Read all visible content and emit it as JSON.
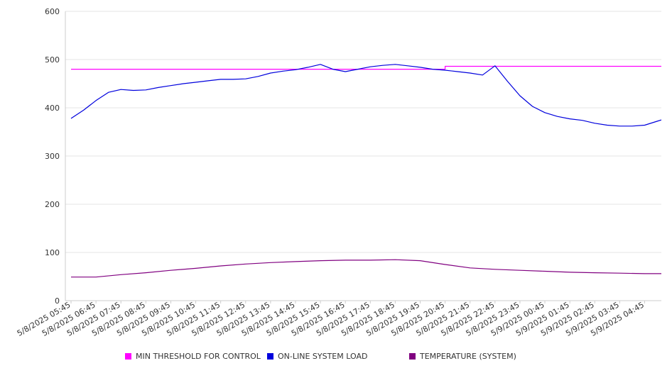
{
  "chart_data": {
    "type": "line",
    "title": "",
    "xlabel": "",
    "ylabel": "",
    "ylim": [
      0,
      600
    ],
    "yticks": [
      0,
      100,
      200,
      300,
      400,
      500,
      600
    ],
    "grid": "horizontal",
    "legend_position": "bottom",
    "x_tick_labels": [
      "5/8/2025 05:45",
      "5/8/2025 06:45",
      "5/8/2025 07:45",
      "5/8/2025 08:45",
      "5/8/2025 09:45",
      "5/8/2025 10:45",
      "5/8/2025 11:45",
      "5/8/2025 12:45",
      "5/8/2025 13:45",
      "5/8/2025 14:45",
      "5/8/2025 15:45",
      "5/8/2025 16:45",
      "5/8/2025 17:45",
      "5/8/2025 18:45",
      "5/8/2025 19:45",
      "5/8/2025 20:45",
      "5/8/2025 21:45",
      "5/8/2025 22:45",
      "5/8/2025 23:45",
      "5/9/2025 00:45",
      "5/9/2025 01:45",
      "5/9/2025 02:45",
      "5/9/2025 03:45",
      "5/9/2025 04:45"
    ],
    "series": [
      {
        "name": "MIN THRESHOLD FOR CONTROL",
        "color": "#ff00ff",
        "x": [
          "5/8/2025 05:45",
          "5/8/2025 20:45",
          "5/8/2025 20:45",
          "5/9/2025 05:45"
        ],
        "values": [
          480,
          480,
          486,
          486
        ]
      },
      {
        "name": "ON-LINE SYSTEM LOAD",
        "color": "#0000dd",
        "x": [
          "5/8/2025 05:45",
          "5/8/2025 06:15",
          "5/8/2025 06:45",
          "5/8/2025 07:15",
          "5/8/2025 07:45",
          "5/8/2025 08:15",
          "5/8/2025 08:45",
          "5/8/2025 09:15",
          "5/8/2025 09:45",
          "5/8/2025 10:15",
          "5/8/2025 10:45",
          "5/8/2025 11:15",
          "5/8/2025 11:45",
          "5/8/2025 12:15",
          "5/8/2025 12:45",
          "5/8/2025 13:15",
          "5/8/2025 13:45",
          "5/8/2025 14:15",
          "5/8/2025 14:45",
          "5/8/2025 15:15",
          "5/8/2025 15:45",
          "5/8/2025 16:15",
          "5/8/2025 16:45",
          "5/8/2025 17:15",
          "5/8/2025 17:45",
          "5/8/2025 18:15",
          "5/8/2025 18:45",
          "5/8/2025 19:15",
          "5/8/2025 19:45",
          "5/8/2025 20:15",
          "5/8/2025 20:45",
          "5/8/2025 21:15",
          "5/8/2025 21:45",
          "5/8/2025 22:15",
          "5/8/2025 22:45",
          "5/8/2025 23:15",
          "5/8/2025 23:45",
          "5/9/2025 00:15",
          "5/9/2025 00:45",
          "5/9/2025 01:15",
          "5/9/2025 01:45",
          "5/9/2025 02:15",
          "5/9/2025 02:45",
          "5/9/2025 03:15",
          "5/9/2025 03:45",
          "5/9/2025 04:15",
          "5/9/2025 04:45",
          "5/9/2025 05:15",
          "5/9/2025 05:45"
        ],
        "values": [
          378,
          395,
          415,
          432,
          438,
          436,
          437,
          442,
          446,
          450,
          453,
          456,
          459,
          459,
          460,
          465,
          472,
          476,
          479,
          484,
          490,
          480,
          475,
          480,
          485,
          488,
          490,
          487,
          484,
          480,
          478,
          475,
          472,
          468,
          487,
          455,
          425,
          403,
          390,
          382,
          377,
          374,
          368,
          364,
          362,
          362,
          364,
          372,
          380
        ]
      },
      {
        "name": "TEMPERATURE (SYSTEM)",
        "color": "#800080",
        "x": [
          "5/8/2025 05:45",
          "5/8/2025 06:45",
          "5/8/2025 07:45",
          "5/8/2025 08:45",
          "5/8/2025 09:45",
          "5/8/2025 10:45",
          "5/8/2025 11:45",
          "5/8/2025 12:45",
          "5/8/2025 13:45",
          "5/8/2025 14:45",
          "5/8/2025 15:45",
          "5/8/2025 16:45",
          "5/8/2025 17:45",
          "5/8/2025 18:45",
          "5/8/2025 19:45",
          "5/8/2025 20:45",
          "5/8/2025 21:45",
          "5/8/2025 22:45",
          "5/8/2025 23:45",
          "5/9/2025 00:45",
          "5/9/2025 01:45",
          "5/9/2025 02:45",
          "5/9/2025 03:45",
          "5/9/2025 04:45",
          "5/9/2025 05:45"
        ],
        "values": [
          49,
          49,
          54,
          58,
          63,
          67,
          72,
          76,
          79,
          81,
          83,
          84,
          84,
          85,
          83,
          75,
          68,
          65,
          63,
          61,
          59,
          58,
          57,
          56,
          56
        ]
      }
    ]
  }
}
